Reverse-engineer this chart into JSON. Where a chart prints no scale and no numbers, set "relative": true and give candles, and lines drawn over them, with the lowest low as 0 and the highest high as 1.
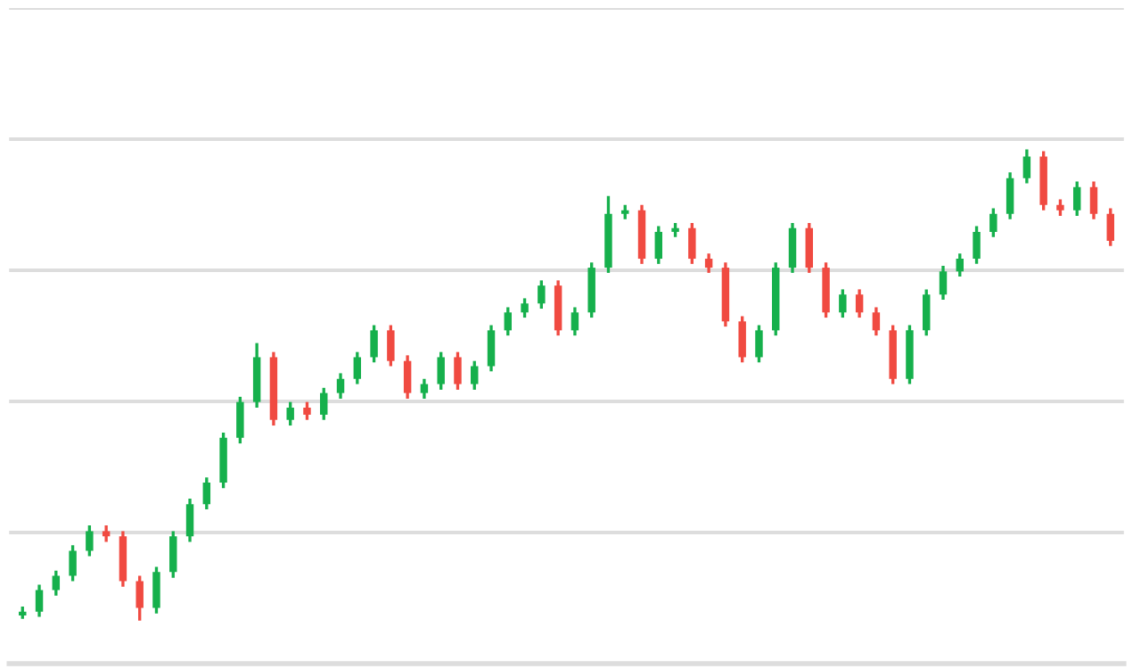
{
  "chart_data": {
    "type": "candlestick",
    "relative": true,
    "grid": "y",
    "categories": [
      null,
      null,
      null,
      null,
      null,
      null,
      null,
      null,
      null,
      null,
      null,
      null,
      null,
      null,
      null,
      null,
      null,
      null,
      null,
      null,
      null,
      null,
      null,
      null,
      null,
      null,
      null,
      null,
      null,
      null,
      null,
      null,
      null,
      null,
      null,
      null,
      null,
      null,
      null,
      null,
      null,
      null,
      null,
      null,
      null,
      null,
      null,
      null,
      null,
      null,
      null,
      null,
      null,
      null,
      null,
      null,
      null,
      null,
      null,
      null,
      null,
      null,
      null,
      null,
      null,
      null
    ],
    "ohlc": [
      [
        0.011,
        0.03,
        0.004,
        0.019
      ],
      [
        0.019,
        0.076,
        0.008,
        0.065
      ],
      [
        0.065,
        0.106,
        0.053,
        0.095
      ],
      [
        0.095,
        0.16,
        0.084,
        0.148
      ],
      [
        0.148,
        0.202,
        0.137,
        0.19
      ],
      [
        0.19,
        0.202,
        0.167,
        0.179
      ],
      [
        0.179,
        0.19,
        0.072,
        0.084
      ],
      [
        0.084,
        0.095,
        0.0,
        0.027
      ],
      [
        0.027,
        0.114,
        0.015,
        0.103
      ],
      [
        0.103,
        0.19,
        0.091,
        0.179
      ],
      [
        0.179,
        0.259,
        0.167,
        0.247
      ],
      [
        0.247,
        0.304,
        0.236,
        0.293
      ],
      [
        0.293,
        0.399,
        0.281,
        0.388
      ],
      [
        0.388,
        0.475,
        0.376,
        0.464
      ],
      [
        0.464,
        0.589,
        0.452,
        0.559
      ],
      [
        0.559,
        0.57,
        0.414,
        0.426
      ],
      [
        0.426,
        0.464,
        0.414,
        0.452
      ],
      [
        0.452,
        0.464,
        0.426,
        0.437
      ],
      [
        0.437,
        0.494,
        0.426,
        0.483
      ],
      [
        0.483,
        0.525,
        0.471,
        0.513
      ],
      [
        0.513,
        0.57,
        0.502,
        0.559
      ],
      [
        0.559,
        0.627,
        0.548,
        0.616
      ],
      [
        0.616,
        0.627,
        0.54,
        0.551
      ],
      [
        0.551,
        0.563,
        0.471,
        0.483
      ],
      [
        0.483,
        0.513,
        0.471,
        0.502
      ],
      [
        0.502,
        0.57,
        0.49,
        0.559
      ],
      [
        0.559,
        0.57,
        0.49,
        0.502
      ],
      [
        0.502,
        0.551,
        0.49,
        0.54
      ],
      [
        0.54,
        0.627,
        0.529,
        0.616
      ],
      [
        0.616,
        0.665,
        0.605,
        0.654
      ],
      [
        0.654,
        0.684,
        0.643,
        0.673
      ],
      [
        0.673,
        0.722,
        0.662,
        0.711
      ],
      [
        0.711,
        0.722,
        0.605,
        0.616
      ],
      [
        0.616,
        0.665,
        0.605,
        0.654
      ],
      [
        0.654,
        0.76,
        0.643,
        0.749
      ],
      [
        0.749,
        0.901,
        0.738,
        0.863
      ],
      [
        0.863,
        0.882,
        0.852,
        0.871
      ],
      [
        0.871,
        0.882,
        0.757,
        0.768
      ],
      [
        0.768,
        0.837,
        0.757,
        0.825
      ],
      [
        0.825,
        0.844,
        0.814,
        0.833
      ],
      [
        0.833,
        0.844,
        0.757,
        0.768
      ],
      [
        0.768,
        0.779,
        0.738,
        0.749
      ],
      [
        0.749,
        0.76,
        0.624,
        0.635
      ],
      [
        0.635,
        0.646,
        0.548,
        0.559
      ],
      [
        0.559,
        0.627,
        0.548,
        0.616
      ],
      [
        0.616,
        0.76,
        0.605,
        0.749
      ],
      [
        0.749,
        0.844,
        0.738,
        0.833
      ],
      [
        0.833,
        0.844,
        0.738,
        0.749
      ],
      [
        0.749,
        0.76,
        0.643,
        0.654
      ],
      [
        0.654,
        0.703,
        0.643,
        0.692
      ],
      [
        0.692,
        0.703,
        0.643,
        0.654
      ],
      [
        0.654,
        0.665,
        0.605,
        0.616
      ],
      [
        0.616,
        0.627,
        0.502,
        0.513
      ],
      [
        0.513,
        0.627,
        0.502,
        0.616
      ],
      [
        0.616,
        0.703,
        0.605,
        0.692
      ],
      [
        0.692,
        0.753,
        0.681,
        0.741
      ],
      [
        0.741,
        0.779,
        0.73,
        0.768
      ],
      [
        0.768,
        0.837,
        0.757,
        0.825
      ],
      [
        0.825,
        0.875,
        0.814,
        0.863
      ],
      [
        0.863,
        0.951,
        0.852,
        0.939
      ],
      [
        0.939,
        1.0,
        0.928,
        0.985
      ],
      [
        0.985,
        0.996,
        0.871,
        0.882
      ],
      [
        0.882,
        0.894,
        0.859,
        0.871
      ],
      [
        0.871,
        0.932,
        0.859,
        0.92
      ],
      [
        0.92,
        0.932,
        0.852,
        0.863
      ],
      [
        0.863,
        0.875,
        0.795,
        0.806
      ]
    ],
    "colors": [
      "#16b04c",
      "#16b04c",
      "#16b04c",
      "#16b04c",
      "#16b04c",
      "#f04a41",
      "#f04a41",
      "#f04a41",
      "#16b04c",
      "#16b04c",
      "#16b04c",
      "#16b04c",
      "#16b04c",
      "#16b04c",
      "#16b04c",
      "#f04a41",
      "#16b04c",
      "#f04a41",
      "#16b04c",
      "#16b04c",
      "#16b04c",
      "#16b04c",
      "#f04a41",
      "#f04a41",
      "#16b04c",
      "#16b04c",
      "#f04a41",
      "#16b04c",
      "#16b04c",
      "#16b04c",
      "#16b04c",
      "#16b04c",
      "#f04a41",
      "#16b04c",
      "#16b04c",
      "#16b04c",
      "#16b04c",
      "#f04a41",
      "#16b04c",
      "#16b04c",
      "#f04a41",
      "#f04a41",
      "#f04a41",
      "#f04a41",
      "#16b04c",
      "#16b04c",
      "#16b04c",
      "#f04a41",
      "#f04a41",
      "#16b04c",
      "#f04a41",
      "#f04a41",
      "#f04a41",
      "#16b04c",
      "#16b04c",
      "#16b04c",
      "#16b04c",
      "#16b04c",
      "#16b04c",
      "#16b04c",
      "#16b04c",
      "#f04a41",
      "#f04a41",
      "#16b04c",
      "#f04a41",
      "#f04a41"
    ]
  }
}
